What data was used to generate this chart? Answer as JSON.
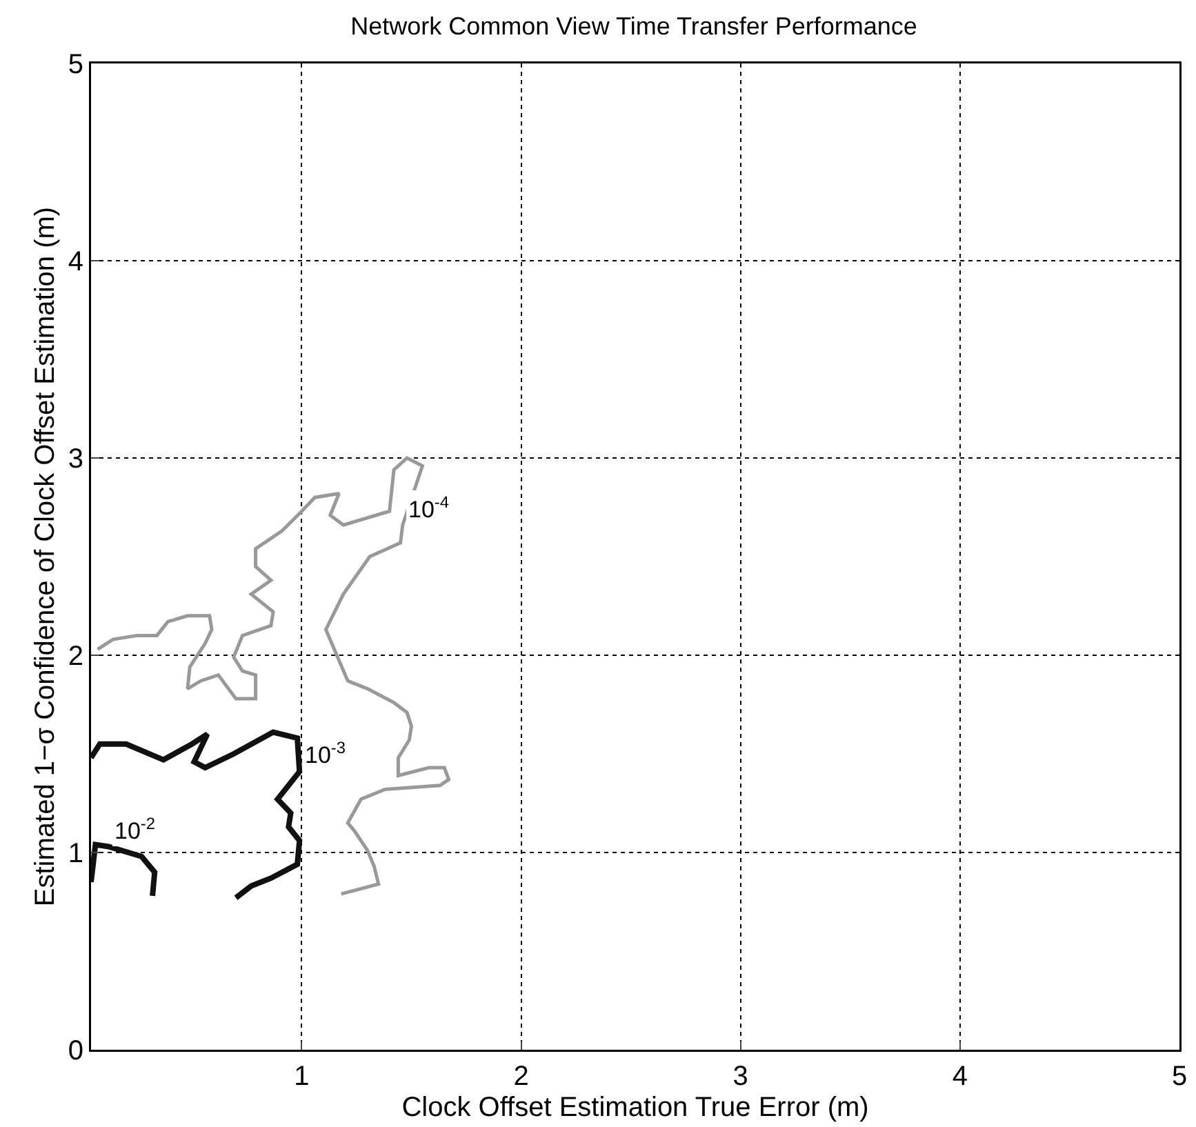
{
  "chart_data": {
    "type": "line",
    "title": "Network Common View Time Transfer Performance",
    "xlabel": "Clock Offset Estimation True Error (m)",
    "ylabel": "Estimated 1−σ Confidence of Clock Offset Estimation (m)",
    "xlim": [
      0.04,
      5
    ],
    "xticks": [
      1,
      2,
      3,
      4,
      5
    ],
    "ylim": [
      0,
      5
    ],
    "yticks": [
      0,
      1,
      2,
      3,
      4,
      5
    ],
    "grid": true,
    "marker": "none",
    "line_style": "solid",
    "series": [
      {
        "color": "#111111",
        "x": [
          0.04,
          0.06,
          0.12,
          0.27,
          0.33,
          0.32
        ],
        "values": [
          0.85,
          1.04,
          1.03,
          0.98,
          0.9,
          0.78
        ]
      },
      {
        "color": "#111111",
        "x": [
          0.04,
          0.08,
          0.2,
          0.37,
          0.5,
          0.57,
          0.51,
          0.56,
          0.69,
          0.87,
          0.98,
          0.99,
          0.89,
          0.95,
          0.94,
          0.99,
          0.98,
          0.86,
          0.77,
          0.7
        ],
        "values": [
          1.48,
          1.55,
          1.55,
          1.47,
          1.55,
          1.6,
          1.46,
          1.43,
          1.5,
          1.61,
          1.58,
          1.41,
          1.27,
          1.2,
          1.13,
          1.06,
          0.94,
          0.87,
          0.83,
          0.77
        ]
      },
      {
        "color": "#999999",
        "x": [
          0.07,
          0.14,
          0.25,
          0.34,
          0.39,
          0.48,
          0.58,
          0.59,
          0.56,
          0.49,
          0.48,
          0.54,
          0.62,
          0.7,
          0.79,
          0.79,
          0.73,
          0.69,
          0.73,
          0.86,
          0.87,
          0.77,
          0.86,
          0.79,
          0.79,
          0.91,
          1.0,
          1.06,
          1.17,
          1.13,
          1.19,
          1.4,
          1.42,
          1.48,
          1.55,
          1.46,
          1.45,
          1.31,
          1.19,
          1.11,
          1.21,
          1.3,
          1.42,
          1.48,
          1.5,
          1.49,
          1.44,
          1.44,
          1.58,
          1.65,
          1.67,
          1.63,
          1.38,
          1.27,
          1.21,
          1.24,
          1.3,
          1.33,
          1.35,
          1.18
        ],
        "values": [
          2.03,
          2.08,
          2.1,
          2.1,
          2.17,
          2.2,
          2.2,
          2.13,
          2.06,
          1.94,
          1.83,
          1.87,
          1.9,
          1.78,
          1.78,
          1.9,
          1.92,
          1.99,
          2.1,
          2.15,
          2.22,
          2.31,
          2.38,
          2.45,
          2.54,
          2.63,
          2.73,
          2.8,
          2.82,
          2.71,
          2.66,
          2.73,
          2.94,
          3.0,
          2.96,
          2.66,
          2.57,
          2.5,
          2.31,
          2.13,
          1.87,
          1.83,
          1.76,
          1.71,
          1.64,
          1.57,
          1.48,
          1.39,
          1.43,
          1.43,
          1.37,
          1.34,
          1.32,
          1.27,
          1.15,
          1.11,
          1.01,
          0.93,
          0.84,
          0.79
        ]
      }
    ],
    "annotations": [
      {
        "text": "10$^{-2}$",
        "x": 0.12,
        "y": 1.03
      },
      {
        "text": "10$^{-3}$",
        "x": 0.99,
        "y": 1.41
      },
      {
        "text": "10$^{-4}$",
        "x": 1.46,
        "y": 2.66
      }
    ]
  }
}
